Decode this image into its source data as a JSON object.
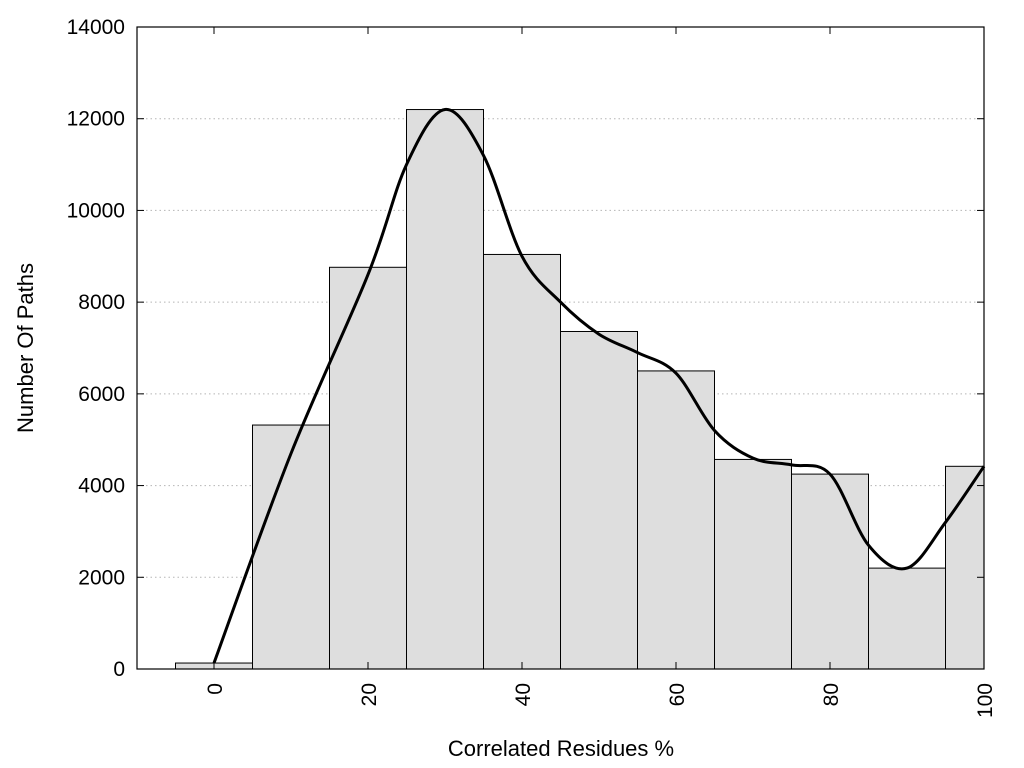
{
  "chart_data": {
    "type": "bar",
    "xlabel": "Correlated Residues %",
    "ylabel": "Number Of Paths",
    "xlim": [
      -10,
      100
    ],
    "ylim": [
      0,
      14000
    ],
    "grid": "horizontal dotted",
    "bar_color": "#dedede",
    "bins": [
      {
        "x0": -5,
        "x1": 5,
        "value": 130
      },
      {
        "x0": 5,
        "x1": 15,
        "value": 5320
      },
      {
        "x0": 15,
        "x1": 25,
        "value": 8760
      },
      {
        "x0": 25,
        "x1": 35,
        "value": 12200
      },
      {
        "x0": 35,
        "x1": 45,
        "value": 9040
      },
      {
        "x0": 45,
        "x1": 55,
        "value": 7360
      },
      {
        "x0": 55,
        "x1": 65,
        "value": 6500
      },
      {
        "x0": 65,
        "x1": 75,
        "value": 4570
      },
      {
        "x0": 75,
        "x1": 85,
        "value": 4250
      },
      {
        "x0": 85,
        "x1": 95,
        "value": 2200
      },
      {
        "x0": 95,
        "x1": 100,
        "value": 4420
      }
    ],
    "curve": {
      "x": [
        0,
        10,
        20,
        25,
        30,
        35,
        40,
        45,
        50,
        55,
        60,
        65,
        70,
        75,
        80,
        85,
        90,
        95,
        100
      ],
      "y": [
        130,
        4700,
        8600,
        11000,
        12200,
        11200,
        9000,
        8000,
        7300,
        6900,
        6450,
        5200,
        4600,
        4450,
        4250,
        2700,
        2200,
        3200,
        4420
      ]
    },
    "x_ticks": [
      "0",
      "20",
      "40",
      "60",
      "80",
      "100"
    ],
    "y_ticks": [
      "0",
      "2000",
      "4000",
      "6000",
      "8000",
      "10000",
      "12000",
      "14000"
    ]
  }
}
